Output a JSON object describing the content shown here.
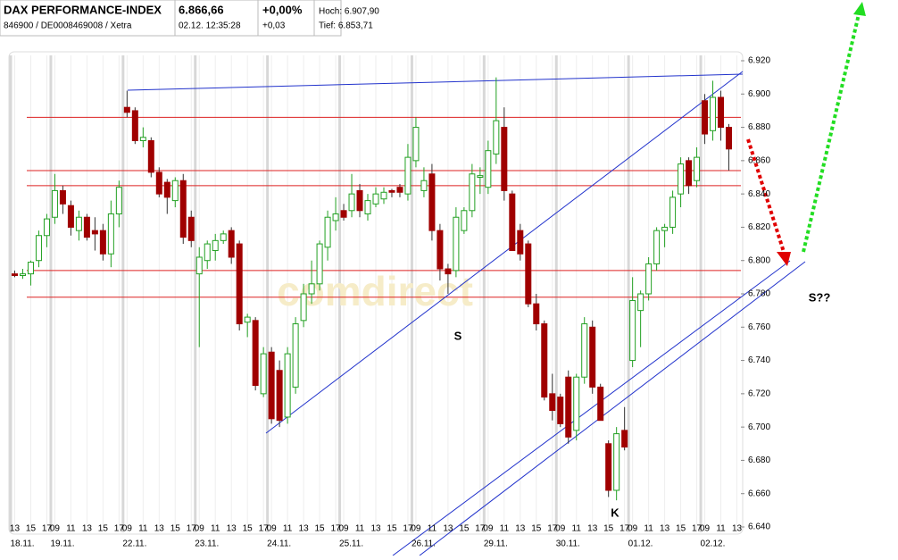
{
  "header": {
    "title": "DAX PERFORMANCE-INDEX",
    "subtitle": "846900 / DE0008469008 / Xetra",
    "price": "6.866,66",
    "time": "02.12. 12:35:28",
    "change_pct": "+0,00%",
    "change": "+0,03",
    "high": "Hoch: 6.907,90",
    "low": "Tief: 6.853,71"
  },
  "chart_data": {
    "type": "candlestick",
    "up_color": "#22a022",
    "down_color": "#a00000",
    "level_color": "#dd2222",
    "candles": {
      "open": [
        6792,
        6791,
        6792,
        6800,
        6815,
        6826,
        6842,
        6833,
        6818,
        6826,
        6818,
        6818,
        6804,
        6828,
        6892,
        6890,
        6872,
        6872,
        6853,
        6847,
        6836,
        6848,
        6826,
        6792,
        6800,
        6806,
        6812,
        6818,
        6810,
        6763,
        6764,
        6720,
        6745,
        6734,
        6706,
        6724,
        6764,
        6780,
        6786,
        6808,
        6824,
        6830,
        6830,
        6842,
        6828,
        6834,
        6837,
        6842,
        6844,
        6840,
        6860,
        6842,
        6852,
        6818,
        6795,
        6794,
        6818,
        6830,
        6850,
        6844,
        6864,
        6880,
        6840,
        6818,
        6810,
        6774,
        6762,
        6720,
        6718,
        6730,
        6698,
        6730,
        6760,
        6724,
        6690,
        6662,
        6698,
        6740,
        6770,
        6780,
        6798,
        6818,
        6820,
        6840,
        6860,
        6848,
        6896,
        6878,
        6898,
        6880
      ],
      "high": [
        6794,
        6795,
        6800,
        6818,
        6828,
        6852,
        6845,
        6836,
        6830,
        6828,
        6826,
        6822,
        6836,
        6848,
        6902,
        6892,
        6880,
        6874,
        6856,
        6849,
        6850,
        6852,
        6830,
        6808,
        6812,
        6816,
        6818,
        6820,
        6812,
        6768,
        6766,
        6748,
        6748,
        6740,
        6748,
        6766,
        6786,
        6800,
        6812,
        6830,
        6838,
        6834,
        6852,
        6846,
        6840,
        6844,
        6844,
        6843,
        6846,
        6870,
        6886,
        6856,
        6858,
        6822,
        6798,
        6832,
        6832,
        6858,
        6856,
        6872,
        6910,
        6892,
        6842,
        6822,
        6812,
        6780,
        6764,
        6732,
        6720,
        6734,
        6732,
        6766,
        6764,
        6726,
        6692,
        6700,
        6712,
        6790,
        6782,
        6802,
        6820,
        6822,
        6842,
        6862,
        6862,
        6868,
        6900,
        6908,
        6902,
        6882
      ],
      "low": [
        6790,
        6789,
        6785,
        6796,
        6808,
        6822,
        6828,
        6815,
        6812,
        6812,
        6806,
        6800,
        6796,
        6820,
        6886,
        6870,
        6868,
        6850,
        6838,
        6828,
        6832,
        6810,
        6808,
        6748,
        6795,
        6800,
        6810,
        6798,
        6758,
        6754,
        6722,
        6718,
        6702,
        6700,
        6702,
        6720,
        6760,
        6774,
        6782,
        6800,
        6818,
        6824,
        6826,
        6826,
        6824,
        6832,
        6834,
        6838,
        6838,
        6836,
        6856,
        6838,
        6812,
        6788,
        6780,
        6790,
        6816,
        6826,
        6840,
        6840,
        6858,
        6836,
        6806,
        6800,
        6772,
        6758,
        6716,
        6704,
        6700,
        6690,
        6692,
        6726,
        6720,
        6704,
        6658,
        6656,
        6686,
        6736,
        6748,
        6776,
        6794,
        6808,
        6816,
        6832,
        6840,
        6844,
        6870,
        6872,
        6872,
        6854
      ],
      "close": [
        6791,
        6792,
        6799,
        6815,
        6825,
        6842,
        6834,
        6820,
        6826,
        6814,
        6816,
        6804,
        6828,
        6844,
        6889,
        6872,
        6874,
        6853,
        6840,
        6838,
        6848,
        6814,
        6812,
        6802,
        6810,
        6812,
        6816,
        6802,
        6762,
        6766,
        6725,
        6744,
        6705,
        6704,
        6744,
        6762,
        6780,
        6786,
        6810,
        6826,
        6828,
        6826,
        6840,
        6830,
        6836,
        6840,
        6841,
        6841,
        6841,
        6862,
        6880,
        6848,
        6818,
        6795,
        6792,
        6826,
        6830,
        6852,
        6851,
        6866,
        6884,
        6842,
        6806,
        6804,
        6774,
        6762,
        6718,
        6710,
        6702,
        6694,
        6730,
        6762,
        6724,
        6704,
        6662,
        6696,
        6688,
        6776,
        6780,
        6798,
        6818,
        6820,
        6838,
        6858,
        6845,
        6862,
        6876,
        6898,
        6880,
        6867
      ]
    },
    "levels": [
      6886,
      6854,
      6845,
      6794,
      6778
    ],
    "xlim": [
      -0.5,
      90.5
    ],
    "xticks": [
      {
        "value": 0,
        "label": "13"
      },
      {
        "value": 2,
        "label": "15"
      },
      {
        "value": 4,
        "label": "17"
      },
      {
        "value": 5,
        "label": "09"
      },
      {
        "value": 7,
        "label": "11"
      },
      {
        "value": 9,
        "label": "13"
      },
      {
        "value": 11,
        "label": "15"
      },
      {
        "value": 13,
        "label": "17"
      },
      {
        "value": 14,
        "label": "09"
      },
      {
        "value": 16,
        "label": "11"
      },
      {
        "value": 18,
        "label": "13"
      },
      {
        "value": 20,
        "label": "15"
      },
      {
        "value": 22,
        "label": "17"
      },
      {
        "value": 23,
        "label": "09"
      },
      {
        "value": 25,
        "label": "11"
      },
      {
        "value": 27,
        "label": "13"
      },
      {
        "value": 29,
        "label": "15"
      },
      {
        "value": 31,
        "label": "17"
      },
      {
        "value": 32,
        "label": "09"
      },
      {
        "value": 34,
        "label": "11"
      },
      {
        "value": 36,
        "label": "13"
      },
      {
        "value": 38,
        "label": "15"
      },
      {
        "value": 40,
        "label": "17"
      },
      {
        "value": 41,
        "label": "09"
      },
      {
        "value": 43,
        "label": "11"
      },
      {
        "value": 45,
        "label": "13"
      },
      {
        "value": 47,
        "label": "15"
      },
      {
        "value": 49,
        "label": "17"
      },
      {
        "value": 50,
        "label": "09"
      },
      {
        "value": 52,
        "label": "11"
      },
      {
        "value": 54,
        "label": "13"
      },
      {
        "value": 56,
        "label": "15"
      },
      {
        "value": 58,
        "label": "17"
      },
      {
        "value": 59,
        "label": "09"
      },
      {
        "value": 61,
        "label": "11"
      },
      {
        "value": 63,
        "label": "13"
      },
      {
        "value": 65,
        "label": "15"
      },
      {
        "value": 67,
        "label": "17"
      },
      {
        "value": 68,
        "label": "09"
      },
      {
        "value": 70,
        "label": "11"
      },
      {
        "value": 72,
        "label": "13"
      },
      {
        "value": 74,
        "label": "15"
      },
      {
        "value": 76,
        "label": "17"
      },
      {
        "value": 77,
        "label": "09"
      },
      {
        "value": 79,
        "label": "11"
      },
      {
        "value": 81,
        "label": "13"
      },
      {
        "value": 83,
        "label": "15"
      },
      {
        "value": 85,
        "label": "17"
      },
      {
        "value": 86,
        "label": "09"
      },
      {
        "value": 88,
        "label": "11"
      },
      {
        "value": 90,
        "label": "13"
      }
    ],
    "day_ticks": [
      {
        "value": 0,
        "label": "18.11."
      },
      {
        "value": 5,
        "label": "19.11."
      },
      {
        "value": 14,
        "label": "22.11."
      },
      {
        "value": 23,
        "label": "23.11."
      },
      {
        "value": 32,
        "label": "24.11."
      },
      {
        "value": 41,
        "label": "25.11."
      },
      {
        "value": 50,
        "label": "26.11."
      },
      {
        "value": 59,
        "label": "29.11."
      },
      {
        "value": 68,
        "label": "30.11."
      },
      {
        "value": 77,
        "label": "01.12."
      },
      {
        "value": 86,
        "label": "02.12."
      }
    ],
    "ylim": [
      6640,
      6920
    ],
    "yticks": [
      {
        "value": 6640,
        "label": "6.640"
      },
      {
        "value": 6660,
        "label": "6.660"
      },
      {
        "value": 6680,
        "label": "6.680"
      },
      {
        "value": 6700,
        "label": "6.700"
      },
      {
        "value": 6720,
        "label": "6.720"
      },
      {
        "value": 6740,
        "label": "6.740"
      },
      {
        "value": 6760,
        "label": "6.760"
      },
      {
        "value": 6780,
        "label": "6.780"
      },
      {
        "value": 6800,
        "label": "6.800"
      },
      {
        "value": 6820,
        "label": "6.820"
      },
      {
        "value": 6840,
        "label": "6.840"
      },
      {
        "value": 6860,
        "label": "6.860"
      },
      {
        "value": 6880,
        "label": "6.880"
      },
      {
        "value": 6900,
        "label": "6.900"
      },
      {
        "value": 6920,
        "label": "6.920"
      }
    ],
    "watermark": "comdirect",
    "annotations": [
      "S",
      "K",
      "S??"
    ]
  }
}
